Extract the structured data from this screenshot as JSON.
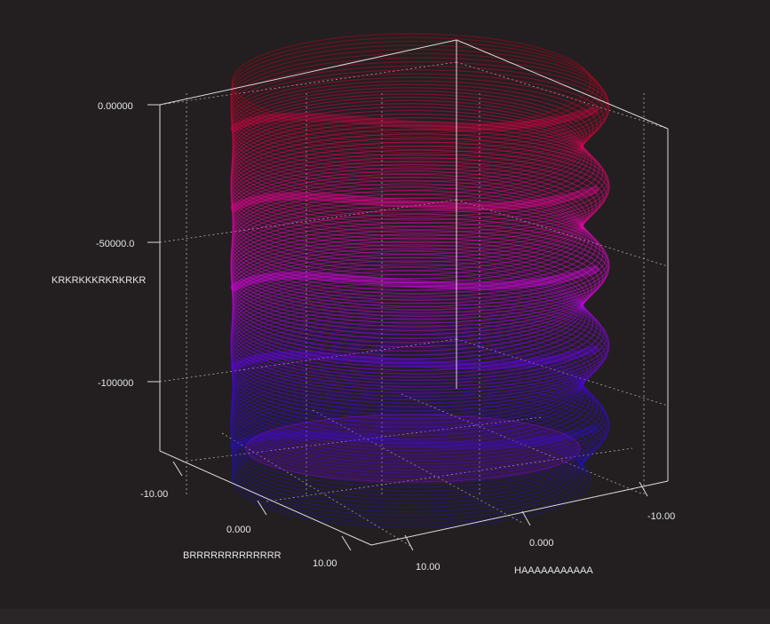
{
  "chart_data": {
    "type": "surface3d",
    "title": "",
    "xlabel": "HAAAAAAAAAAA",
    "ylabel": "BRRRRRRRRRRRRR",
    "zlabel": "KRKRKKKRKRKRKR",
    "x_ticks": [
      "-10.00",
      "0.000",
      "10.00"
    ],
    "y_ticks": [
      "-10.00",
      "0.000",
      "10.00"
    ],
    "z_ticks": [
      "0.00000",
      "-50000.0",
      "-100000"
    ],
    "xlim": [
      -13,
      13
    ],
    "ylim": [
      -13,
      13
    ],
    "zlim": [
      -125000,
      0
    ],
    "grid": true,
    "series": [
      {
        "surface_type": "wavy-cylinder",
        "radius": 10,
        "wave_amplitude": 1,
        "wave_count": 5,
        "z_range": [
          -125000,
          -5000
        ],
        "colors": {
          "top": "#c4001a",
          "upper": "#ff0070",
          "middle": "#ff00ff",
          "lower": "#4d00ff",
          "bottom": "#1b10b8"
        }
      }
    ]
  }
}
